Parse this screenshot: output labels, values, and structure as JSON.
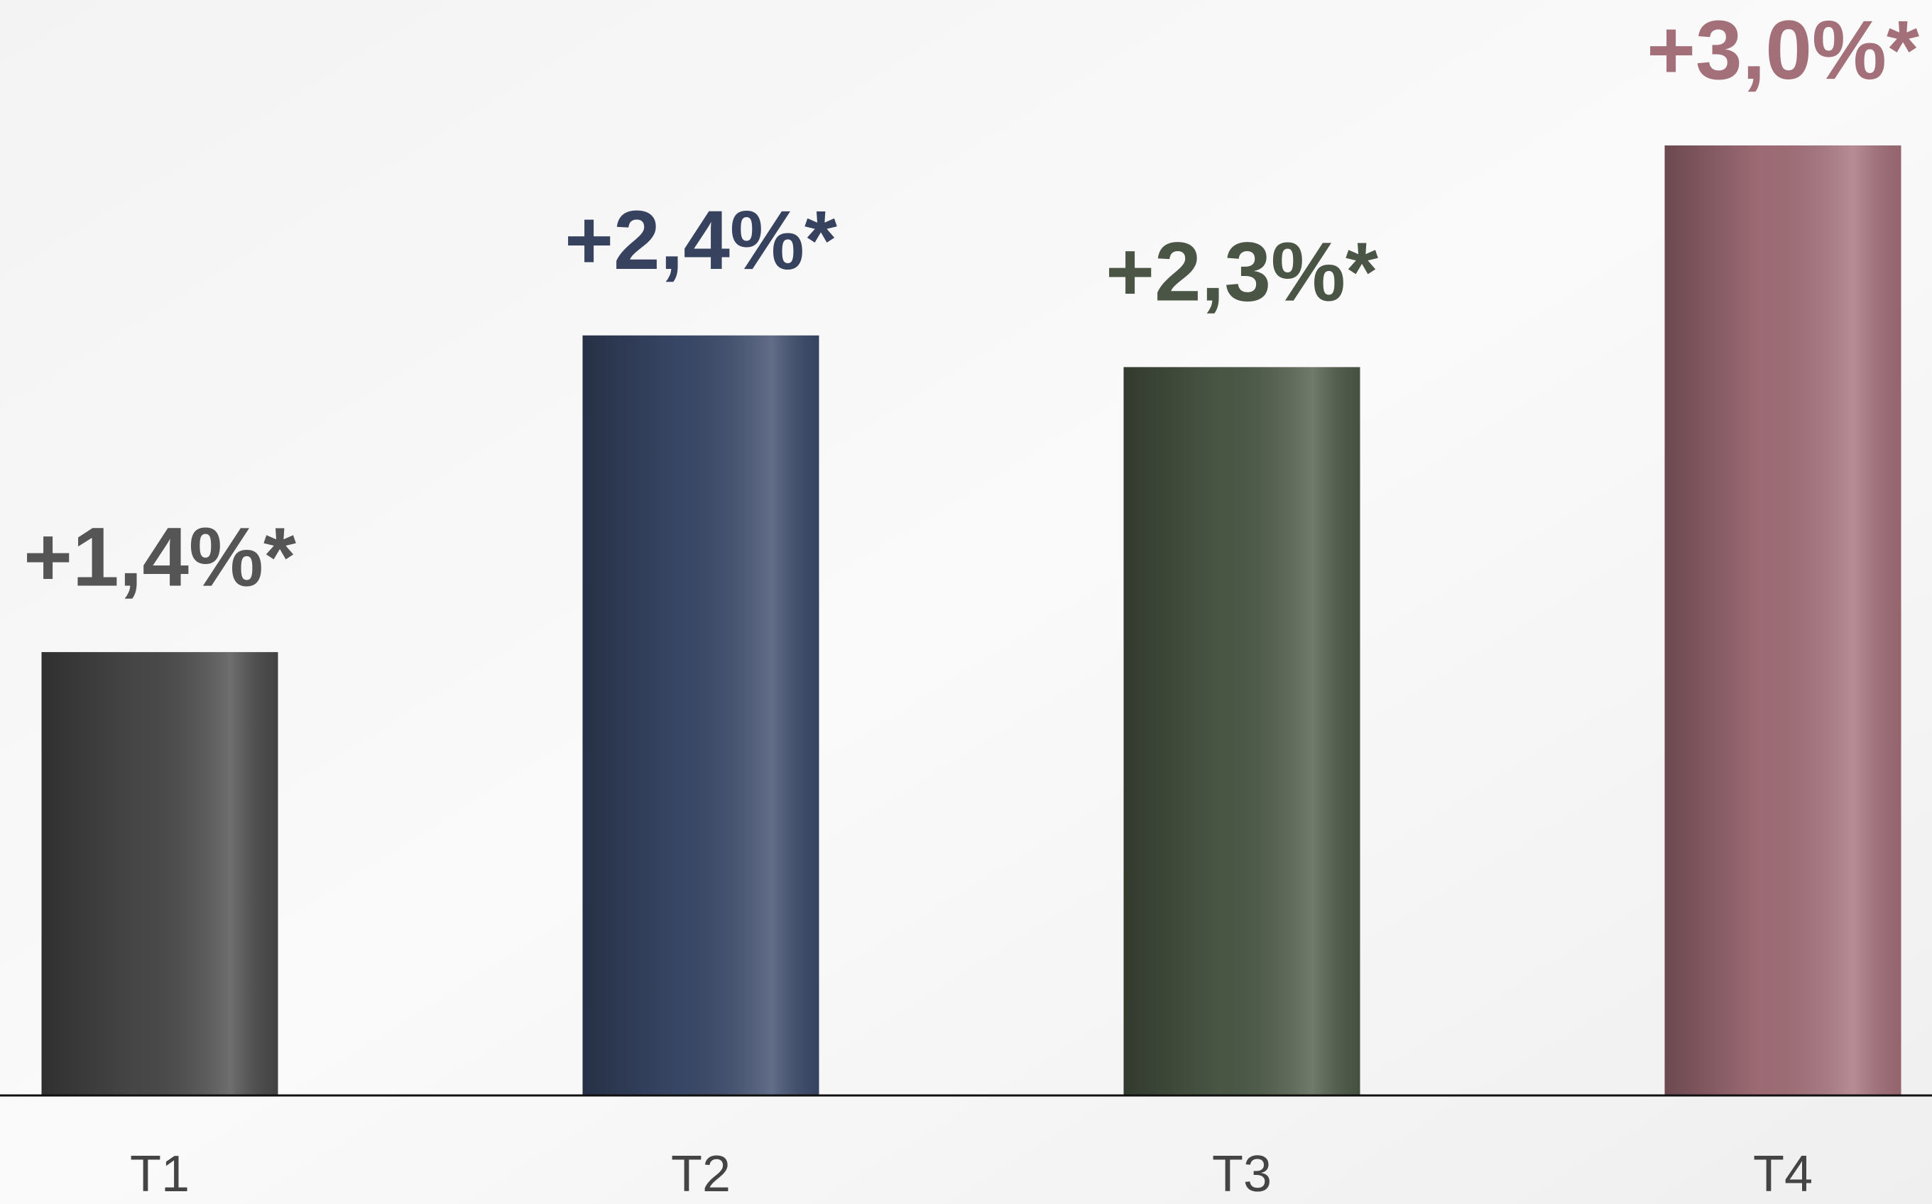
{
  "chart_data": {
    "type": "bar",
    "categories": [
      "T1",
      "T2",
      "T3",
      "T4"
    ],
    "values": [
      1.4,
      2.4,
      2.3,
      3.0
    ],
    "value_labels": [
      "+1,4%*",
      "+2,4%*",
      "+2,3%*",
      "+3,0%*"
    ],
    "colors": [
      "#4a4a4a",
      "#3b4a6b",
      "#4d5a47",
      "#a5707a"
    ],
    "label_colors": [
      "#555555",
      "#37425f",
      "#4b5545",
      "#a3707a"
    ]
  }
}
